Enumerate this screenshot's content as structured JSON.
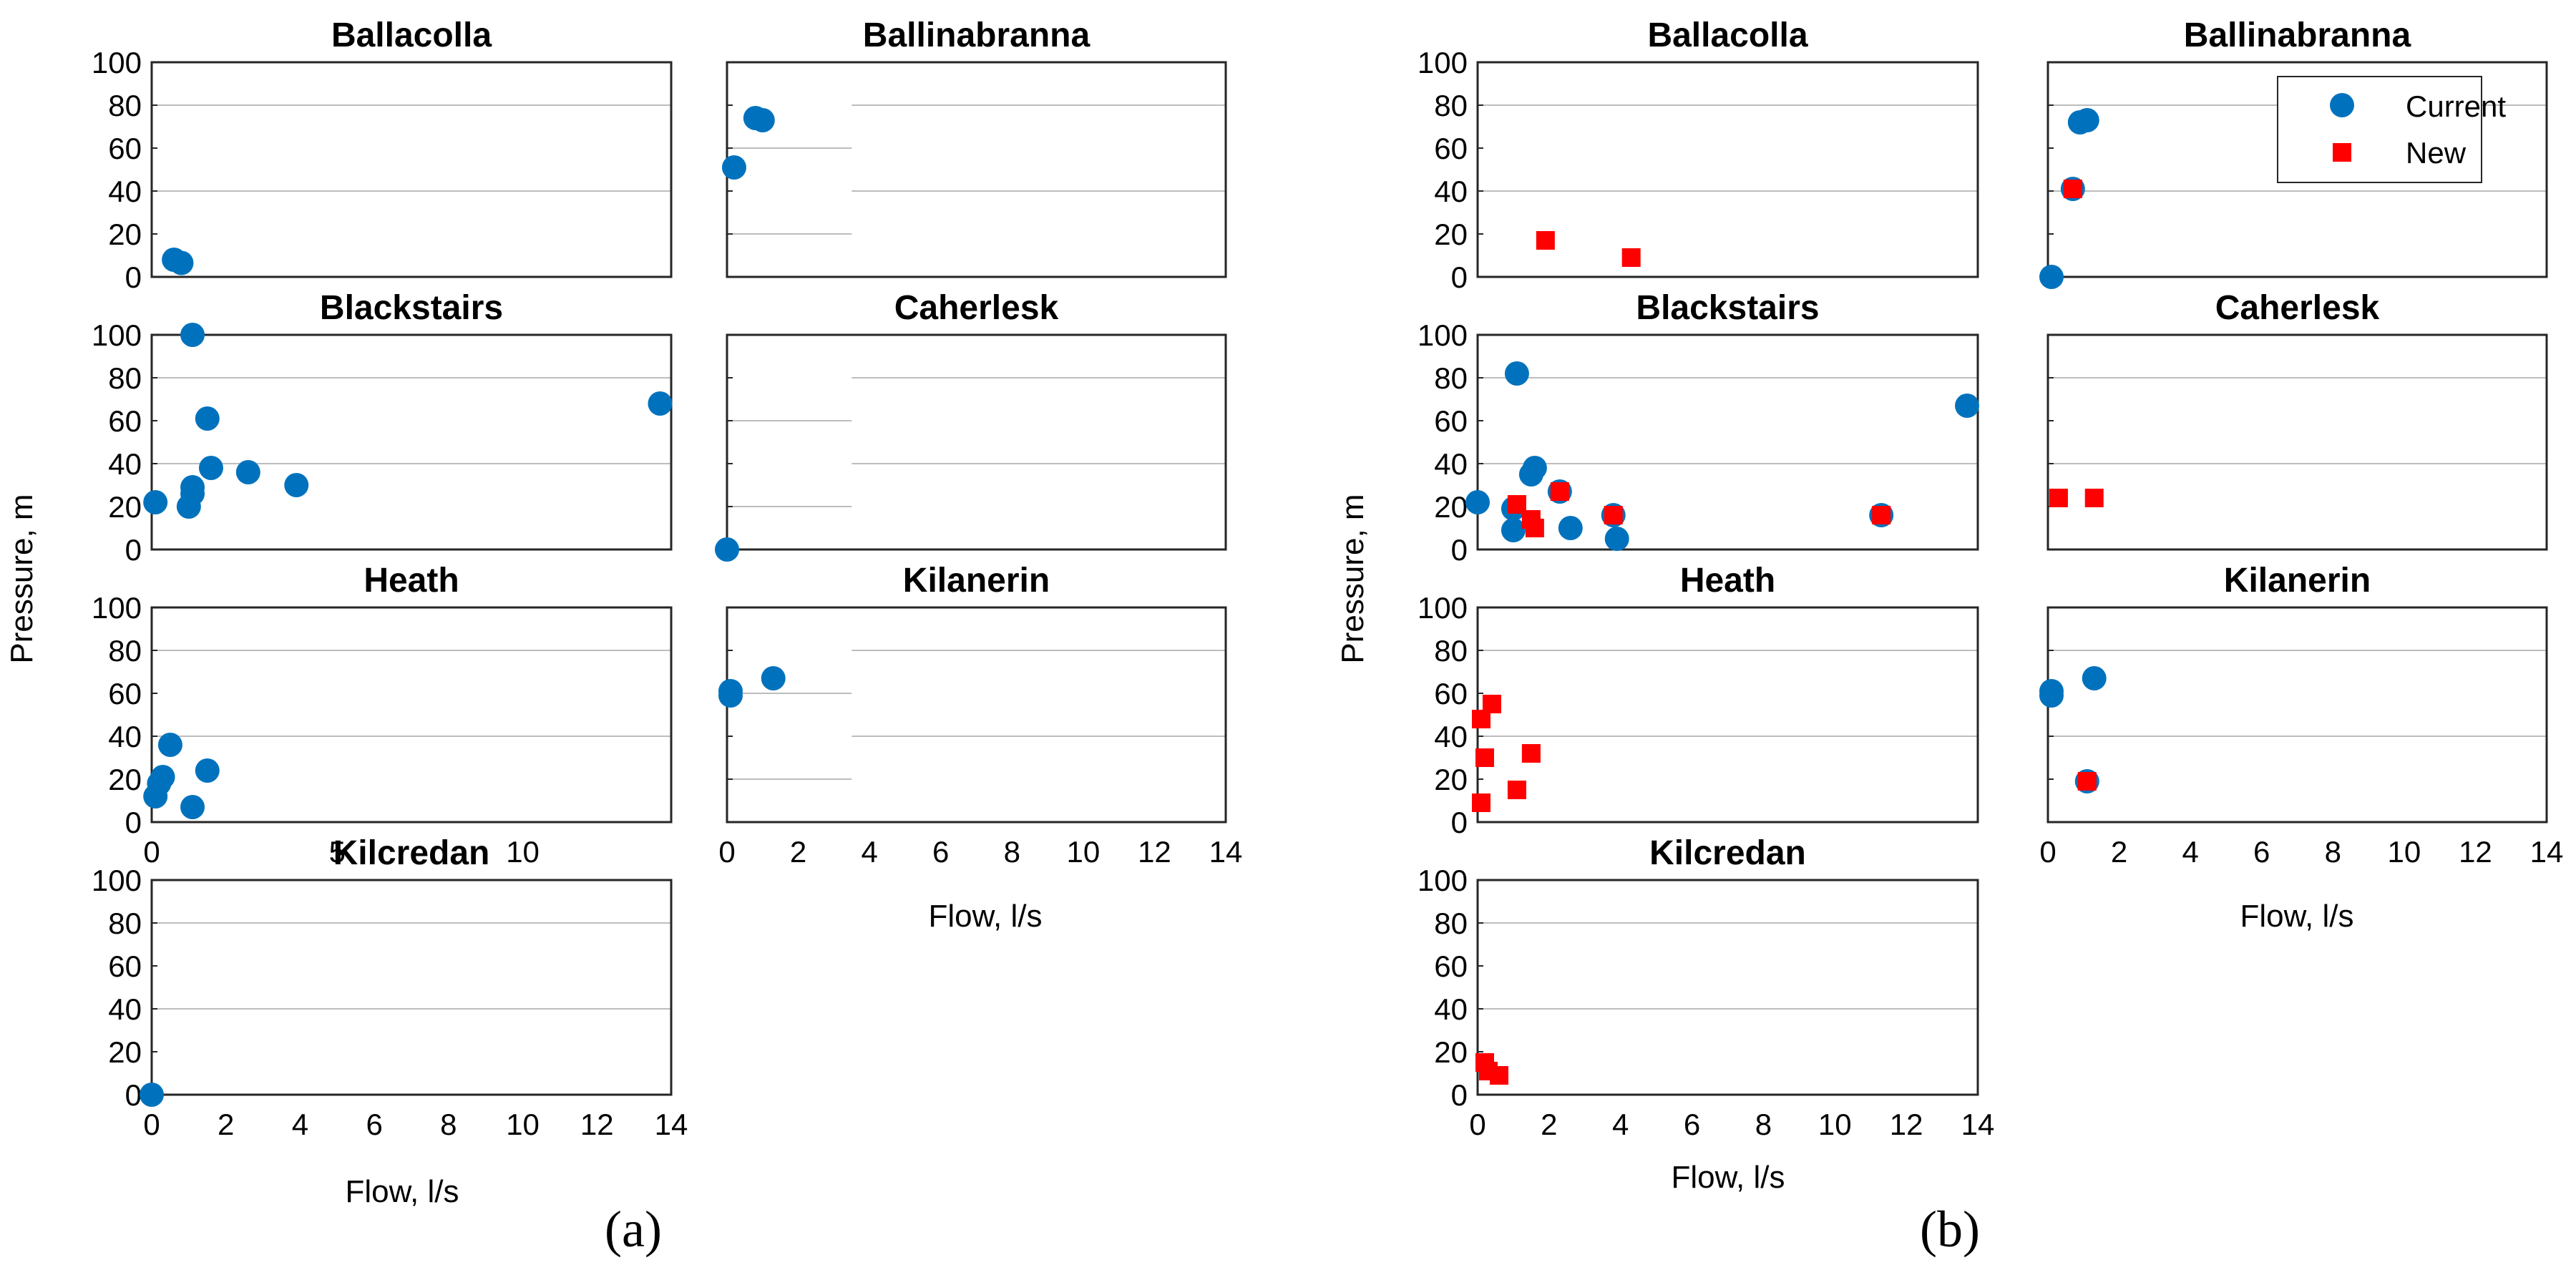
{
  "figure": {
    "panel_a_label": "(a)",
    "panel_b_label": "(b)"
  },
  "legend": {
    "current": "Current",
    "new": "New"
  },
  "colors": {
    "current": "#0072BD",
    "new": "#FF0000"
  },
  "chart_data": [
    {
      "panel": "a",
      "type": "scatter",
      "xlabel": "Flow, l/s",
      "ylabel": "Pressure, m",
      "ylim": [
        0,
        100
      ],
      "yticks": [
        "0",
        "20",
        "40",
        "60",
        "80",
        "100"
      ],
      "xticks": [
        "0",
        "2",
        "4",
        "6",
        "8",
        "10",
        "12",
        "14"
      ],
      "xticks_narrow": [
        "0",
        "5",
        "10"
      ],
      "subplots": [
        {
          "title": "Ballacolla",
          "xlim": [
            0,
            14
          ],
          "series": [
            {
              "name": "Current",
              "marker": "circle",
              "points": [
                [
                  0.6,
                  8
                ],
                [
                  0.8,
                  6.5
                ]
              ]
            }
          ]
        },
        {
          "title": "Ballinabranna",
          "xlim": [
            0,
            14
          ],
          "series": [
            {
              "name": "Current",
              "marker": "circle",
              "points": [
                [
                  0.2,
                  51
                ],
                [
                  0.8,
                  74
                ],
                [
                  1.0,
                  73
                ]
              ]
            }
          ]
        },
        {
          "title": "Blackstairs",
          "xlim": [
            0,
            14
          ],
          "series": [
            {
              "name": "Current",
              "marker": "circle",
              "points": [
                [
                  0.1,
                  22
                ],
                [
                  1.0,
                  20
                ],
                [
                  1.1,
                  26
                ],
                [
                  1.1,
                  29
                ],
                [
                  1.1,
                  100
                ],
                [
                  1.5,
                  61
                ],
                [
                  1.6,
                  38
                ],
                [
                  2.6,
                  36
                ],
                [
                  3.9,
                  30
                ],
                [
                  13.7,
                  68
                ]
              ]
            }
          ]
        },
        {
          "title": "Caherlesk",
          "xlim": [
            0,
            14
          ],
          "series": [
            {
              "name": "Current",
              "marker": "circle",
              "points": [
                [
                  0,
                  0
                ]
              ]
            }
          ]
        },
        {
          "title": "Heath",
          "xlim": [
            0,
            14
          ],
          "series": [
            {
              "name": "Current",
              "marker": "circle",
              "points": [
                [
                  0.1,
                  12
                ],
                [
                  0.2,
                  18
                ],
                [
                  0.3,
                  21
                ],
                [
                  0.5,
                  36
                ],
                [
                  1.1,
                  7
                ],
                [
                  1.5,
                  24
                ]
              ]
            }
          ]
        },
        {
          "title": "Kilanerin",
          "xlim": [
            0,
            14
          ],
          "series": [
            {
              "name": "Current",
              "marker": "circle",
              "points": [
                [
                  0.1,
                  59
                ],
                [
                  0.1,
                  61
                ],
                [
                  1.3,
                  67
                ]
              ]
            }
          ]
        },
        {
          "title": "Kilcredan",
          "xlim": [
            0,
            14
          ],
          "series": [
            {
              "name": "Current",
              "marker": "circle",
              "points": [
                [
                  0,
                  0
                ]
              ]
            }
          ]
        }
      ]
    },
    {
      "panel": "b",
      "type": "scatter",
      "xlabel": "Flow, l/s",
      "ylabel": "Pressure, m",
      "ylim": [
        0,
        100
      ],
      "yticks": [
        "0",
        "20",
        "40",
        "60",
        "80",
        "100"
      ],
      "xticks": [
        "0",
        "2",
        "4",
        "6",
        "8",
        "10",
        "12",
        "14"
      ],
      "legend_location": "top-right of Ballinabranna",
      "subplots": [
        {
          "title": "Ballacolla",
          "xlim": [
            0,
            14
          ],
          "series": [
            {
              "name": "New",
              "marker": "square",
              "points": [
                [
                  1.9,
                  17
                ],
                [
                  4.3,
                  9
                ]
              ]
            }
          ]
        },
        {
          "title": "Ballinabranna",
          "xlim": [
            0,
            14
          ],
          "series": [
            {
              "name": "Current",
              "marker": "circle",
              "points": [
                [
                  0.1,
                  0
                ],
                [
                  0.7,
                  41
                ],
                [
                  0.9,
                  72
                ],
                [
                  1.1,
                  73
                ]
              ]
            },
            {
              "name": "New",
              "marker": "square",
              "points": [
                [
                  0.7,
                  41
                ]
              ]
            }
          ]
        },
        {
          "title": "Blackstairs",
          "xlim": [
            0,
            14
          ],
          "series": [
            {
              "name": "Current",
              "marker": "circle",
              "points": [
                [
                  0.0,
                  22
                ],
                [
                  1.0,
                  9
                ],
                [
                  1.0,
                  19
                ],
                [
                  1.1,
                  82
                ],
                [
                  1.5,
                  35
                ],
                [
                  1.6,
                  38
                ],
                [
                  2.3,
                  27
                ],
                [
                  2.6,
                  10
                ],
                [
                  3.8,
                  16
                ],
                [
                  3.9,
                  5
                ],
                [
                  11.3,
                  16
                ],
                [
                  13.7,
                  67
                ]
              ]
            },
            {
              "name": "New",
              "marker": "square",
              "points": [
                [
                  1.1,
                  21
                ],
                [
                  1.5,
                  14
                ],
                [
                  1.6,
                  10
                ],
                [
                  2.3,
                  27
                ],
                [
                  3.8,
                  16
                ],
                [
                  11.3,
                  16
                ]
              ]
            }
          ]
        },
        {
          "title": "Caherlesk",
          "xlim": [
            0,
            14
          ],
          "series": [
            {
              "name": "New",
              "marker": "square",
              "points": [
                [
                  0.3,
                  24
                ],
                [
                  1.3,
                  24
                ]
              ]
            }
          ]
        },
        {
          "title": "Heath",
          "xlim": [
            0,
            14
          ],
          "series": [
            {
              "name": "New",
              "marker": "square",
              "points": [
                [
                  0.1,
                  9
                ],
                [
                  0.1,
                  48
                ],
                [
                  0.2,
                  30
                ],
                [
                  0.4,
                  55
                ],
                [
                  1.1,
                  15
                ],
                [
                  1.5,
                  32
                ]
              ]
            }
          ]
        },
        {
          "title": "Kilanerin",
          "xlim": [
            0,
            14
          ],
          "series": [
            {
              "name": "Current",
              "marker": "circle",
              "points": [
                [
                  0.1,
                  59
                ],
                [
                  0.1,
                  61
                ],
                [
                  1.1,
                  19
                ],
                [
                  1.3,
                  67
                ]
              ]
            },
            {
              "name": "New",
              "marker": "square",
              "points": [
                [
                  1.1,
                  19
                ]
              ]
            }
          ]
        },
        {
          "title": "Kilcredan",
          "xlim": [
            0,
            14
          ],
          "series": [
            {
              "name": "New",
              "marker": "square",
              "points": [
                [
                  0.2,
                  15
                ],
                [
                  0.3,
                  11
                ],
                [
                  0.6,
                  9
                ]
              ]
            }
          ]
        }
      ]
    }
  ]
}
